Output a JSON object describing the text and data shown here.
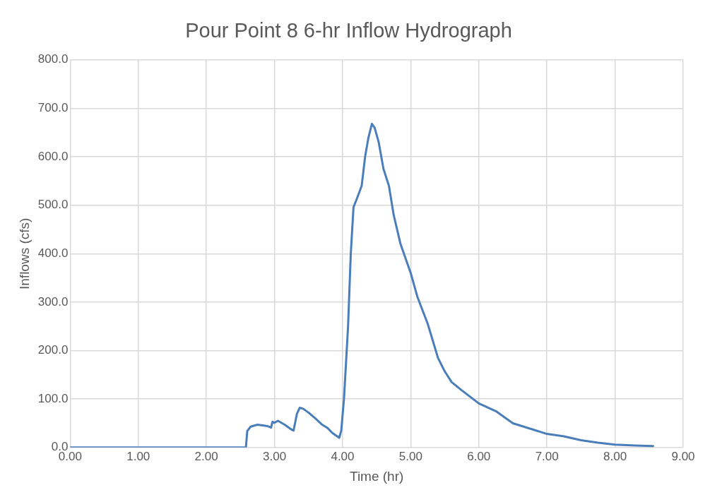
{
  "chart_data": {
    "type": "line",
    "title": "Pour Point 8 6-hr Inflow Hydrograph",
    "xlabel": "Time (hr)",
    "ylabel": "Inflows (cfs)",
    "xlim": [
      0,
      9
    ],
    "xticks": [
      {
        "value": 0,
        "label": "0.00"
      },
      {
        "value": 1,
        "label": "1.00"
      },
      {
        "value": 2,
        "label": "2.00"
      },
      {
        "value": 3,
        "label": "3.00"
      },
      {
        "value": 4,
        "label": "4.00"
      },
      {
        "value": 5,
        "label": "5.00"
      },
      {
        "value": 6,
        "label": "6.00"
      },
      {
        "value": 7,
        "label": "7.00"
      },
      {
        "value": 8,
        "label": "8.00"
      },
      {
        "value": 9,
        "label": "9.00"
      }
    ],
    "ylim": [
      0,
      800
    ],
    "yticks": [
      {
        "value": 0,
        "label": "0.0"
      },
      {
        "value": 100,
        "label": "100.0"
      },
      {
        "value": 200,
        "label": "200.0"
      },
      {
        "value": 300,
        "label": "300.0"
      },
      {
        "value": 400,
        "label": "400.0"
      },
      {
        "value": 500,
        "label": "500.0"
      },
      {
        "value": 600,
        "label": "600.0"
      },
      {
        "value": 700,
        "label": "700.0"
      },
      {
        "value": 800,
        "label": "800.0"
      }
    ],
    "grid": true,
    "legend": false,
    "marker": "none",
    "line_style": "solid",
    "series": [
      {
        "color": "#4a7ebb",
        "x": [
          0,
          2.58,
          2.6,
          2.65,
          2.75,
          2.9,
          2.95,
          2.97,
          3.0,
          3.05,
          3.15,
          3.25,
          3.28,
          3.33,
          3.37,
          3.42,
          3.5,
          3.6,
          3.7,
          3.78,
          3.85,
          3.95,
          3.98,
          4.02,
          4.08,
          4.12,
          4.16,
          4.2,
          4.28,
          4.33,
          4.38,
          4.43,
          4.47,
          4.53,
          4.6,
          4.68,
          4.75,
          4.85,
          5.0,
          5.1,
          5.25,
          5.4,
          5.5,
          5.6,
          5.75,
          6.0,
          6.25,
          6.5,
          7.0,
          7.25,
          7.5,
          7.75,
          8.0,
          8.3,
          8.56
        ],
        "values": [
          0,
          0,
          34,
          43,
          47,
          44,
          41,
          53,
          51,
          55,
          47,
          37,
          35,
          70,
          82,
          80,
          72,
          60,
          47,
          40,
          30,
          20,
          35,
          100,
          250,
          400,
          496,
          510,
          540,
          600,
          640,
          668,
          660,
          630,
          575,
          540,
          480,
          420,
          360,
          310,
          255,
          185,
          157,
          135,
          118,
          91,
          75,
          50,
          28,
          23,
          15,
          10,
          6,
          4,
          3
        ]
      }
    ]
  }
}
